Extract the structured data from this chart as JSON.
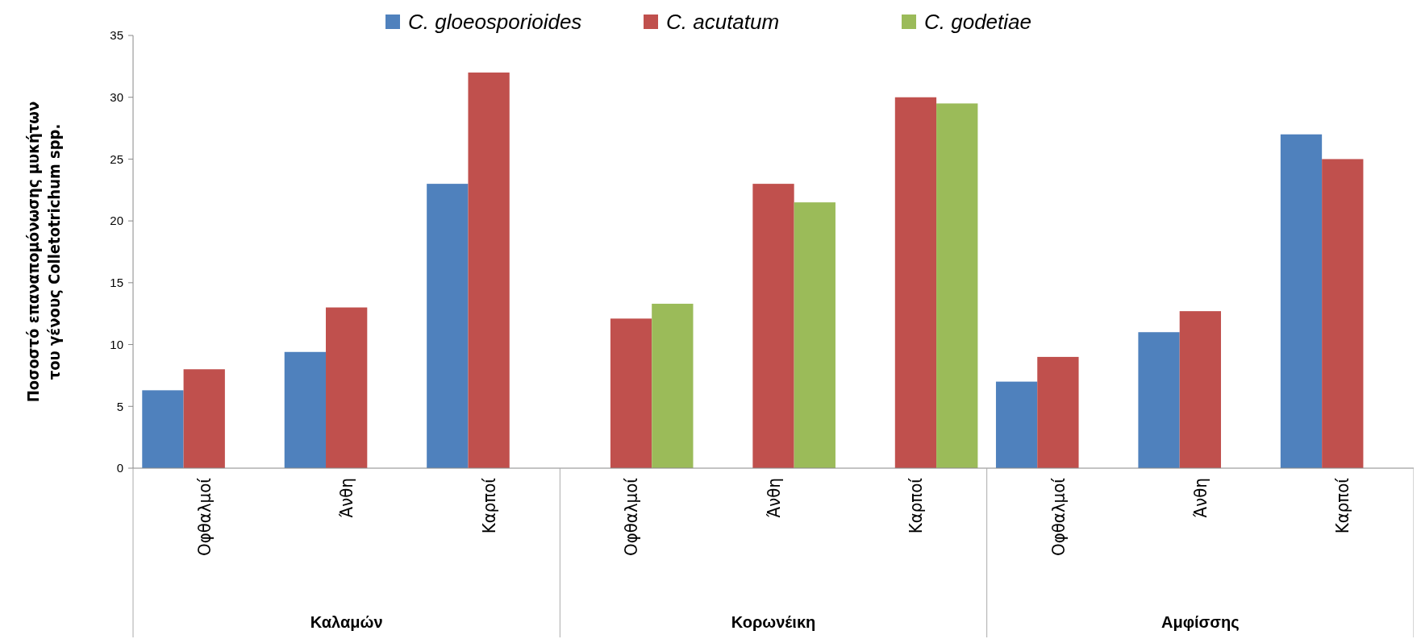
{
  "chart_data": {
    "type": "bar",
    "ylabel": "Ποσοστό επαναπομόνωσης μυκήτων του γένους Colletotrichum spp.",
    "categories": [
      "Οφθαλμοί",
      "Άνθη",
      "Καρποί",
      "Οφθαλμοί",
      "Άνθη",
      "Καρποί",
      "Οφθαλμοί",
      "Άνθη",
      "Καρποί"
    ],
    "annotations": [
      "Καλαμών",
      "Κορωνέικη",
      "Αμφίσσης"
    ],
    "series": [
      {
        "name": "C. gloeosporioides",
        "color": "#4f81bd",
        "values": [
          6.3,
          9.4,
          23,
          null,
          null,
          null,
          7,
          11,
          27
        ]
      },
      {
        "name": "C. acutatum",
        "color": "#c0504d",
        "values": [
          8,
          13,
          32,
          12.1,
          23,
          30,
          9,
          12.7,
          25
        ]
      },
      {
        "name": "C. godetiae",
        "color": "#9bbb59",
        "values": [
          null,
          null,
          null,
          13.3,
          21.5,
          29.5,
          null,
          null,
          null
        ]
      }
    ],
    "ylim": [
      0,
      35
    ],
    "yticks": [
      0,
      5,
      10,
      15,
      20,
      25,
      30,
      35
    ],
    "legend": "top",
    "grid": false
  }
}
